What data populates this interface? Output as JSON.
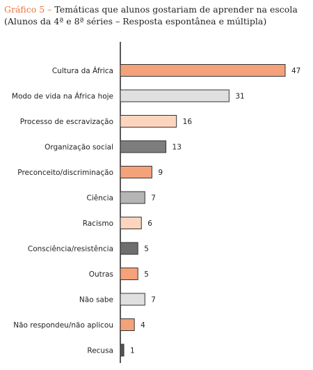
{
  "figure": {
    "label": "Gráfico 5 –",
    "title": "Temáticas que alunos gostariam de aprender na escola (Alunos da 4ª e 8ª séries – Resposta espontânea e múltipla)"
  },
  "chart_data": {
    "type": "bar",
    "orientation": "horizontal",
    "title": "Temáticas que alunos gostariam de aprender na escola (Alunos da 4ª e 8ª séries – Resposta espontânea e múltipla)",
    "xlabel": "",
    "ylabel": "",
    "grid": false,
    "legend": "none",
    "xlim": [
      0,
      47
    ],
    "categories": [
      "Cultura da África",
      "Modo de vida na África hoje",
      "Processo de escravização",
      "Organização social",
      "Preconceito/discriminação",
      "Ciência",
      "Racismo",
      "Consciência/resistência",
      "Outras",
      "Não sabe",
      "Não respondeu/não aplicou",
      "Recusa"
    ],
    "values": [
      47,
      31,
      16,
      13,
      9,
      7,
      6,
      5,
      5,
      7,
      4,
      1
    ],
    "bar_colors": [
      "#f4a27a",
      "#e0e0e0",
      "#fdd5be",
      "#7d7d7d",
      "#f4a27a",
      "#b5b5b5",
      "#fdd5be",
      "#6e6e6e",
      "#f4a27a",
      "#e0e0e0",
      "#f4a27a",
      "#555555"
    ]
  }
}
